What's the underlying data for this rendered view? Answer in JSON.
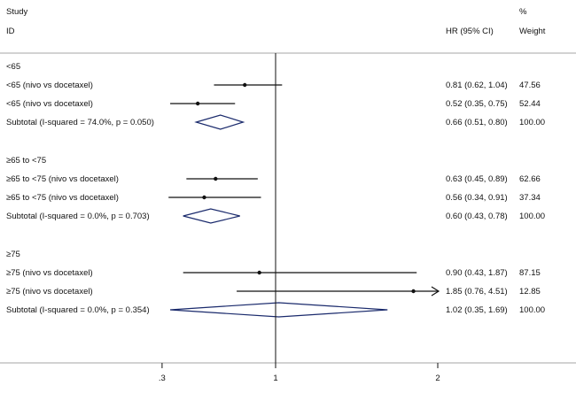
{
  "chart_data": {
    "type": "forest",
    "header": {
      "study_line1": "Study",
      "study_line2": "ID",
      "hr_col": "HR (95% CI)",
      "weight_line1": "%",
      "weight_line2": "Weight"
    },
    "x_axis": {
      "reference": 1,
      "ticks": [
        {
          "value": 0.3,
          "label": ".3"
        },
        {
          "value": 1,
          "label": "1"
        },
        {
          "value": 2,
          "label": "2"
        }
      ]
    },
    "groups": [
      {
        "label": "<65",
        "studies": [
          {
            "label": "<65 (nivo vs docetaxel)",
            "hr": 0.81,
            "lo": 0.62,
            "hi": 1.04,
            "hr_text": "0.81 (0.62, 1.04)",
            "weight": "47.56",
            "arrow": false
          },
          {
            "label": "<65 (nivo vs docetaxel)",
            "hr": 0.52,
            "lo": 0.35,
            "hi": 0.75,
            "hr_text": "0.52 (0.35, 0.75)",
            "weight": "52.44",
            "arrow": false
          }
        ],
        "subtotal": {
          "label": "Subtotal  (I-squared = 74.0%, p = 0.050)",
          "hr": 0.66,
          "lo": 0.51,
          "hi": 0.8,
          "hr_text": "0.66 (0.51, 0.80)",
          "weight": "100.00"
        }
      },
      {
        "label": "≥65 to <75",
        "studies": [
          {
            "label": "≥65 to <75 (nivo vs docetaxel)",
            "hr": 0.63,
            "lo": 0.45,
            "hi": 0.89,
            "hr_text": "0.63 (0.45, 0.89)",
            "weight": "62.66",
            "arrow": false
          },
          {
            "label": "≥65 to <75 (nivo vs docetaxel)",
            "hr": 0.56,
            "lo": 0.34,
            "hi": 0.91,
            "hr_text": "0.56 (0.34, 0.91)",
            "weight": "37.34",
            "arrow": false
          }
        ],
        "subtotal": {
          "label": "Subtotal  (I-squared = 0.0%, p = 0.703)",
          "hr": 0.6,
          "lo": 0.43,
          "hi": 0.78,
          "hr_text": "0.60 (0.43, 0.78)",
          "weight": "100.00"
        }
      },
      {
        "label": "≥75",
        "studies": [
          {
            "label": "≥75 (nivo vs docetaxel)",
            "hr": 0.9,
            "lo": 0.43,
            "hi": 1.87,
            "hr_text": "0.90 (0.43, 1.87)",
            "weight": "87.15",
            "arrow": false
          },
          {
            "label": "≥75 (nivo vs docetaxel)",
            "hr": 1.85,
            "lo": 0.76,
            "hi": 4.51,
            "hr_text": "1.85 (0.76, 4.51)",
            "weight": "12.85",
            "arrow": true
          }
        ],
        "subtotal": {
          "label": "Subtotal  (I-squared = 0.0%, p = 0.354)",
          "hr": 1.02,
          "lo": 0.35,
          "hi": 1.69,
          "hr_text": "1.02 (0.35, 1.69)",
          "weight": "100.00"
        }
      }
    ],
    "colors": {
      "text": "#111111",
      "line": "#111111",
      "diamond": "#1a2a6c",
      "rule": "#888888"
    }
  }
}
